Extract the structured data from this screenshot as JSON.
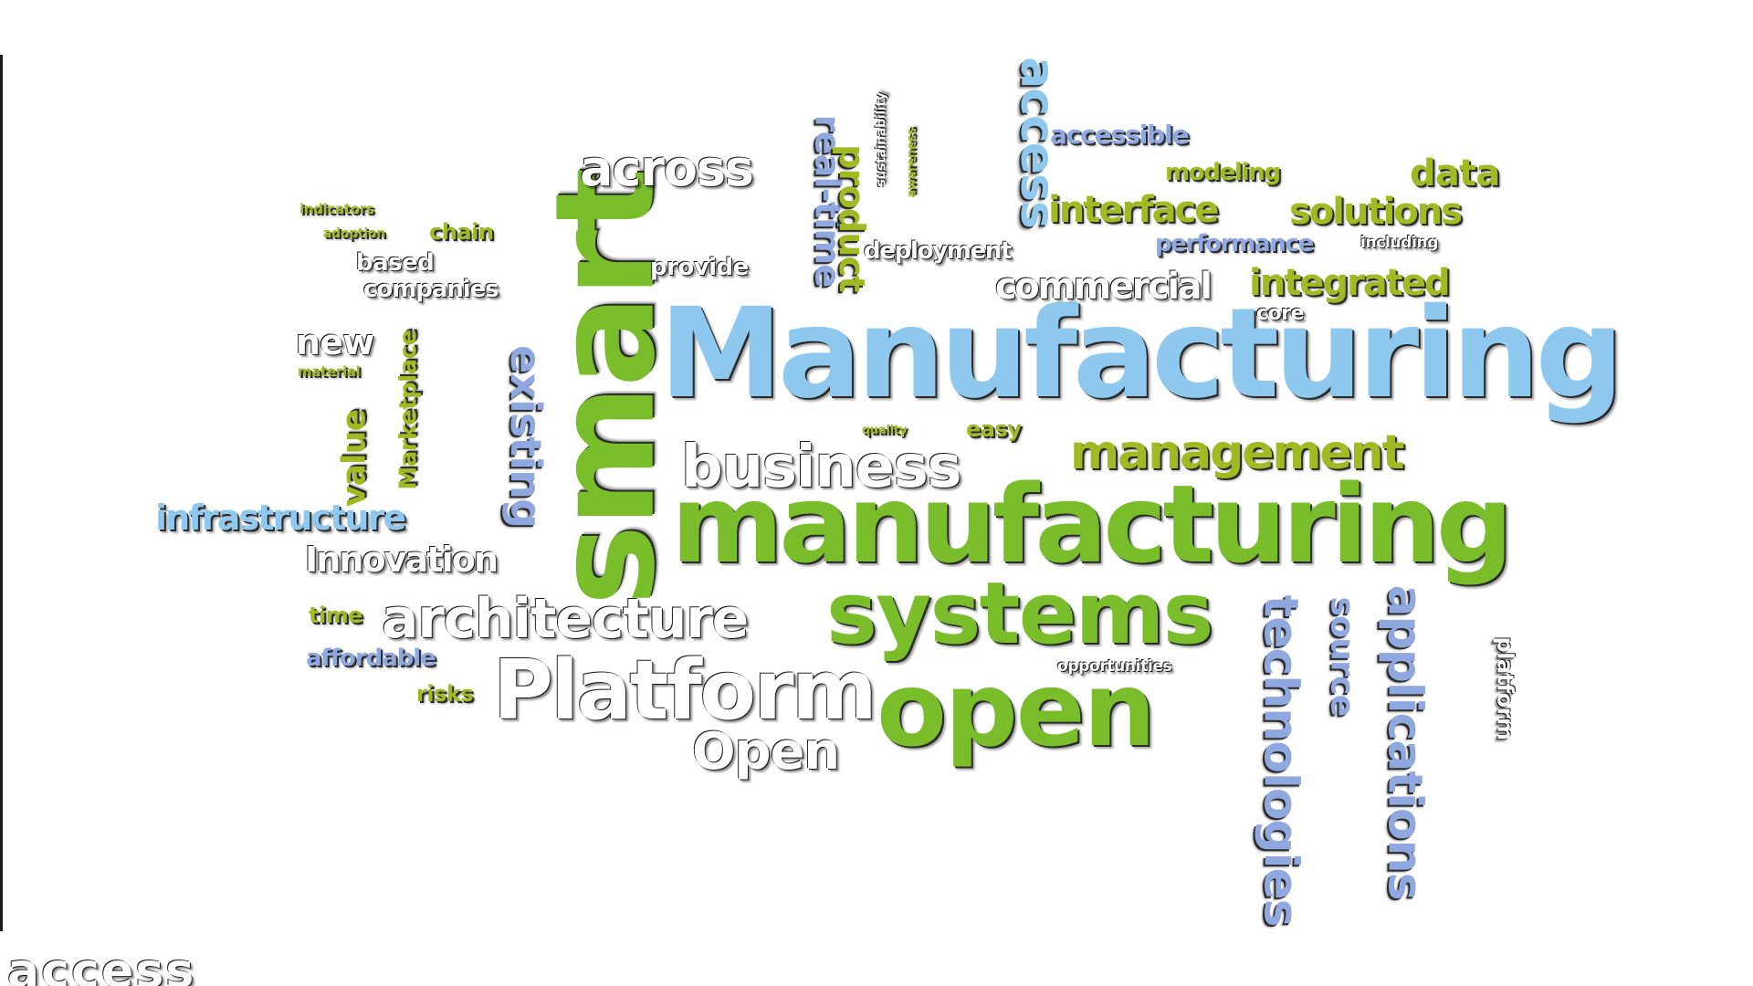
{
  "words": [
    {
      "text": "Manufacturing",
      "color": "#8ec8ee"
    },
    {
      "text": "manufacturing",
      "color": "#79bd2a"
    },
    {
      "text": "smart",
      "color": "#79bd2a"
    },
    {
      "text": "systems",
      "color": "#79bd2a"
    },
    {
      "text": "open",
      "color": "#79bd2a"
    },
    {
      "text": "Platform",
      "color": "#ffffff"
    },
    {
      "text": "business",
      "color": "#ffffff"
    },
    {
      "text": "architecture",
      "color": "#ffffff"
    },
    {
      "text": "management",
      "color": "#9fba22"
    },
    {
      "text": "technologies",
      "color": "#8fa8e0"
    },
    {
      "text": "applications",
      "color": "#8fa8e0"
    },
    {
      "text": "access",
      "color": "#8ec8ee"
    },
    {
      "text": "across",
      "color": "#ffffff"
    },
    {
      "text": "Open",
      "color": "#ffffff"
    },
    {
      "text": "existing",
      "color": "#8fa8e0"
    },
    {
      "text": "infrastructure",
      "color": "#8ec8ee"
    },
    {
      "text": "Innovation",
      "color": "#ffffff"
    },
    {
      "text": "integrated",
      "color": "#9fba22"
    },
    {
      "text": "commercial",
      "color": "#ffffff"
    },
    {
      "text": "interface",
      "color": "#9fba22"
    },
    {
      "text": "solutions",
      "color": "#9fba22"
    },
    {
      "text": "data",
      "color": "#9fba22"
    },
    {
      "text": "real-time",
      "color": "#8fa8e0"
    },
    {
      "text": "product",
      "color": "#9fba22"
    },
    {
      "text": "value",
      "color": "#9fba22"
    },
    {
      "text": "Marketplace",
      "color": "#9fba22"
    },
    {
      "text": "new",
      "color": "#ffffff"
    },
    {
      "text": "companies",
      "color": "#ffffff"
    },
    {
      "text": "based",
      "color": "#ffffff"
    },
    {
      "text": "chain",
      "color": "#9fba22"
    },
    {
      "text": "adoption",
      "color": "#9fba22"
    },
    {
      "text": "indicators",
      "color": "#9fba22"
    },
    {
      "text": "material",
      "color": "#9fba22"
    },
    {
      "text": "provide",
      "color": "#ffffff"
    },
    {
      "text": "deployment",
      "color": "#ffffff"
    },
    {
      "text": "sustainability",
      "color": "#ffffff"
    },
    {
      "text": "awareness",
      "color": "#9fba22"
    },
    {
      "text": "accessible",
      "color": "#8fa8e0"
    },
    {
      "text": "modeling",
      "color": "#9fba22"
    },
    {
      "text": "performance",
      "color": "#8fa8e0"
    },
    {
      "text": "including",
      "color": "#ffffff"
    },
    {
      "text": "core",
      "color": "#ffffff"
    },
    {
      "text": "quality",
      "color": "#9fba22"
    },
    {
      "text": "easy",
      "color": "#9fba22"
    },
    {
      "text": "time",
      "color": "#9fba22"
    },
    {
      "text": "affordable",
      "color": "#8fa8e0"
    },
    {
      "text": "risks",
      "color": "#9fba22"
    },
    {
      "text": "opportunities",
      "color": "#ffffff"
    },
    {
      "text": "source",
      "color": "#8fa8e0"
    },
    {
      "text": "platform",
      "color": "#ffffff"
    },
    {
      "text": "access",
      "color": "#ffffff"
    }
  ]
}
